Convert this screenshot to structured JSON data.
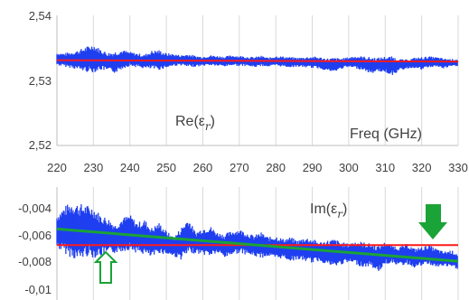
{
  "chart_data": [
    {
      "type": "line",
      "panel": "top",
      "annotations": [
        "Re(ε",
        "r",
        ")",
        "Freq (GHz)"
      ],
      "x_ticks": [
        "220",
        "230",
        "240",
        "250",
        "260",
        "270",
        "280",
        "290",
        "300",
        "310",
        "320",
        "330"
      ],
      "y_ticks": [
        "2,54",
        "2,53",
        "2,52"
      ],
      "xlim": [
        220,
        330
      ],
      "ylim": [
        2.52,
        2.54
      ],
      "grid": "vertical",
      "series": [
        {
          "color": "#1f3ff0",
          "x": [
            220,
            222,
            224,
            226,
            228,
            230,
            232,
            234,
            236,
            238,
            240,
            242,
            244,
            246,
            248,
            250,
            252,
            254,
            256,
            258,
            260,
            262,
            264,
            266,
            268,
            270,
            272,
            274,
            276,
            278,
            280,
            282,
            284,
            286,
            288,
            290,
            292,
            294,
            296,
            298,
            300,
            302,
            304,
            306,
            308,
            310,
            312,
            314,
            316,
            318,
            320,
            322,
            324,
            326,
            328,
            330
          ],
          "upper": [
            2.5343,
            2.5342,
            2.5344,
            2.5347,
            2.5352,
            2.5356,
            2.5348,
            2.5343,
            2.5345,
            2.5347,
            2.5344,
            2.5342,
            2.534,
            2.5346,
            2.5347,
            2.5342,
            2.5341,
            2.5339,
            2.5341,
            2.5338,
            2.5337,
            2.5339,
            2.5338,
            2.5337,
            2.5339,
            2.5338,
            2.5337,
            2.5336,
            2.5338,
            2.5335,
            2.5338,
            2.5337,
            2.5336,
            2.5335,
            2.5336,
            2.5337,
            2.5336,
            2.5334,
            2.5335,
            2.5334,
            2.5336,
            2.5338,
            2.5337,
            2.5336,
            2.5335,
            2.5337,
            2.5337,
            2.5333,
            2.5332,
            2.5335,
            2.5336,
            2.5337,
            2.5336,
            2.5334,
            2.5333,
            2.5333
          ],
          "lower": [
            2.5323,
            2.5321,
            2.5319,
            2.5316,
            2.5313,
            2.5312,
            2.5316,
            2.5314,
            2.5311,
            2.5318,
            2.5322,
            2.532,
            2.5318,
            2.5317,
            2.5316,
            2.5319,
            2.5322,
            2.5323,
            2.532,
            2.5321,
            2.5322,
            2.5323,
            2.5322,
            2.5321,
            2.5323,
            2.5322,
            2.5322,
            2.532,
            2.5322,
            2.5321,
            2.5322,
            2.5321,
            2.532,
            2.5321,
            2.532,
            2.5319,
            2.5318,
            2.5315,
            2.5312,
            2.5318,
            2.532,
            2.5318,
            2.5316,
            2.531,
            2.5314,
            2.5312,
            2.5308,
            2.5315,
            2.5318,
            2.5319,
            2.5316,
            2.532,
            2.5321,
            2.5318,
            2.5321,
            2.5322
          ]
        },
        {
          "color": "#ff1a1a",
          "x": [
            220,
            330
          ],
          "values": [
            2.5331,
            2.5329
          ]
        }
      ]
    },
    {
      "type": "line",
      "panel": "bottom",
      "annotations": [
        "Im(ε",
        "r",
        ")"
      ],
      "y_ticks": [
        "-0,004",
        "-0,006",
        "-0,008",
        "-0,01"
      ],
      "xlim": [
        220,
        330
      ],
      "ylim": [
        -0.01,
        -0.003
      ],
      "grid": "vertical",
      "series": [
        {
          "color": "#1f3ff0",
          "x": [
            220,
            222,
            224,
            226,
            228,
            230,
            232,
            234,
            236,
            238,
            240,
            242,
            244,
            246,
            248,
            250,
            252,
            254,
            256,
            258,
            260,
            262,
            264,
            266,
            268,
            270,
            272,
            274,
            276,
            278,
            280,
            282,
            284,
            286,
            288,
            290,
            292,
            294,
            296,
            298,
            300,
            302,
            304,
            306,
            308,
            310,
            312,
            314,
            316,
            318,
            320,
            322,
            324,
            326,
            328,
            330
          ],
          "upper": [
            -0.0047,
            -0.0042,
            -0.0039,
            -0.004,
            -0.0041,
            -0.0042,
            -0.0047,
            -0.0049,
            -0.0053,
            -0.0049,
            -0.0047,
            -0.0052,
            -0.005,
            -0.0055,
            -0.0052,
            -0.0057,
            -0.0061,
            -0.0055,
            -0.0049,
            -0.0058,
            -0.0055,
            -0.0054,
            -0.0058,
            -0.0059,
            -0.0057,
            -0.0056,
            -0.0058,
            -0.006,
            -0.0058,
            -0.0061,
            -0.006,
            -0.0062,
            -0.0061,
            -0.0063,
            -0.0061,
            -0.0062,
            -0.0064,
            -0.0063,
            -0.0062,
            -0.0064,
            -0.0065,
            -0.0063,
            -0.0064,
            -0.0065,
            -0.0066,
            -0.0064,
            -0.0066,
            -0.0067,
            -0.0065,
            -0.0068,
            -0.0067,
            -0.0066,
            -0.0068,
            -0.007,
            -0.0069,
            -0.0071
          ],
          "lower": [
            -0.0068,
            -0.0071,
            -0.0074,
            -0.0076,
            -0.0073,
            -0.0074,
            -0.0073,
            -0.0072,
            -0.0071,
            -0.007,
            -0.0069,
            -0.0071,
            -0.0072,
            -0.0074,
            -0.0071,
            -0.0072,
            -0.0073,
            -0.0075,
            -0.0072,
            -0.0071,
            -0.0072,
            -0.0073,
            -0.0071,
            -0.0074,
            -0.0072,
            -0.0071,
            -0.0072,
            -0.0073,
            -0.0074,
            -0.0073,
            -0.0075,
            -0.0074,
            -0.0076,
            -0.0075,
            -0.0076,
            -0.0077,
            -0.0076,
            -0.0078,
            -0.008,
            -0.0078,
            -0.0077,
            -0.0078,
            -0.008,
            -0.0079,
            -0.0083,
            -0.0078,
            -0.0077,
            -0.0079,
            -0.0078,
            -0.008,
            -0.0079,
            -0.0078,
            -0.008,
            -0.0079,
            -0.008,
            -0.0081
          ]
        },
        {
          "color": "#ff1a1a",
          "x": [
            220,
            330
          ],
          "values": [
            -0.0066,
            -0.0066
          ]
        },
        {
          "color": "#1aa337",
          "x": [
            220,
            330
          ],
          "values": [
            -0.0056,
            -0.0076
          ]
        }
      ],
      "markers": [
        {
          "kind": "arrow-up-outline",
          "color": "#1aa337",
          "x": 233,
          "y": -0.0077
        },
        {
          "kind": "arrow-down-filled",
          "color": "#1aa337",
          "x": 322,
          "y": -0.0064
        }
      ]
    }
  ]
}
